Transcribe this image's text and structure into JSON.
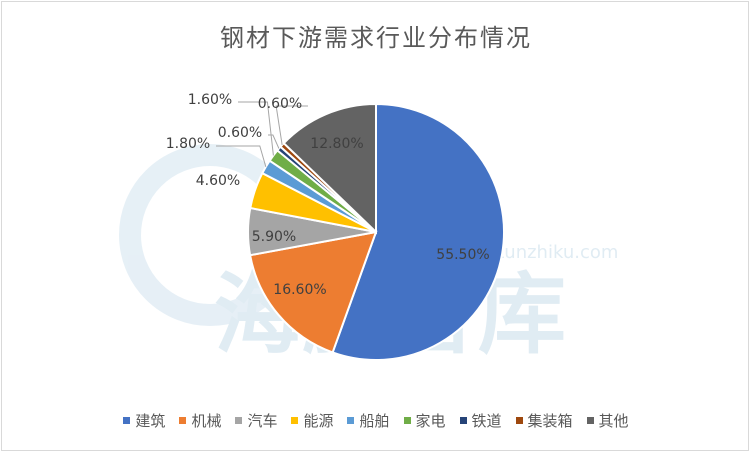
{
  "chart_data": {
    "type": "pie",
    "title": "钢材下游需求行业分布情况",
    "categories": [
      "建筑",
      "机械",
      "汽车",
      "能源",
      "船舶",
      "家电",
      "铁道",
      "集装箱",
      "其他"
    ],
    "values": [
      55.5,
      16.6,
      5.9,
      4.6,
      1.8,
      1.6,
      0.6,
      0.6,
      12.8
    ],
    "labels": [
      "55.50%",
      "16.60%",
      "5.90%",
      "4.60%",
      "1.80%",
      "1.60%",
      "0.60%",
      "0.60%",
      "12.80%"
    ],
    "colors": [
      "#4472c4",
      "#ed7d31",
      "#a5a5a5",
      "#ffc000",
      "#5b9bd5",
      "#70ad47",
      "#264478",
      "#9e480e",
      "#636363"
    ],
    "legend_position": "bottom"
  },
  "watermark": {
    "text": "海豚智库",
    "url": "www.haitunzhiku.com"
  }
}
